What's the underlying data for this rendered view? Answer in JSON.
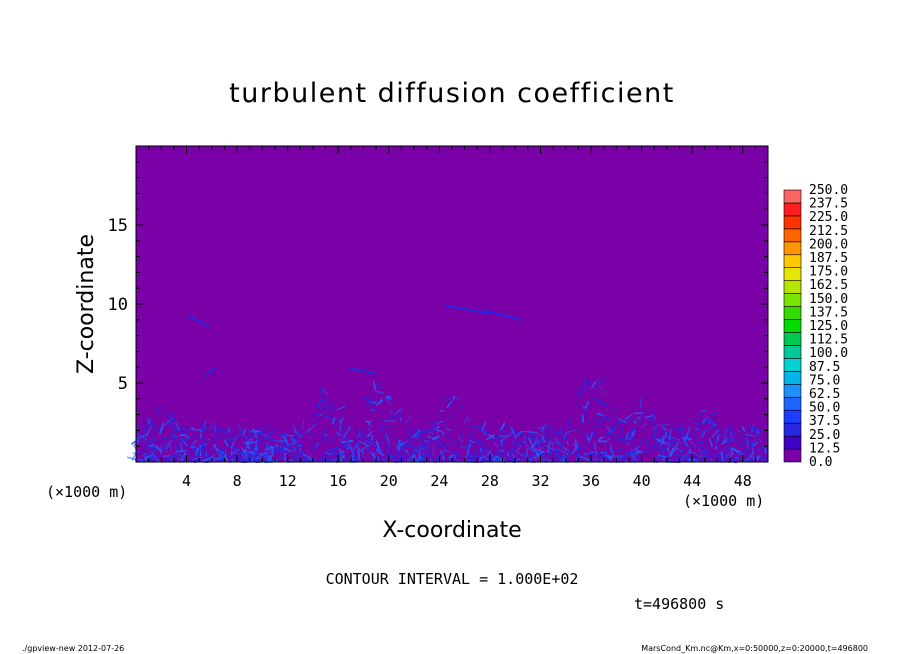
{
  "chart_data": {
    "type": "heatmap",
    "title": "turbulent diffusion coefficient",
    "xlabel": "X-coordinate",
    "ylabel": "Z-coordinate",
    "x_unit": "(×1000 m)",
    "z_unit": "(×1000 m)",
    "xlim": [
      0,
      50
    ],
    "ylim": [
      0,
      20
    ],
    "x_ticks": [
      4,
      8,
      12,
      16,
      20,
      24,
      28,
      32,
      36,
      40,
      44,
      48
    ],
    "y_ticks": [
      5,
      10,
      15
    ],
    "background_value": 0.0,
    "colorbar": {
      "levels": [
        "0.0",
        "12.5",
        "25.0",
        "37.5",
        "50.0",
        "62.5",
        "75.0",
        "87.5",
        "100.0",
        "112.5",
        "125.0",
        "137.5",
        "150.0",
        "162.5",
        "175.0",
        "187.5",
        "200.0",
        "212.5",
        "225.0",
        "237.5",
        "250.0"
      ],
      "colors": [
        "#7a00a8",
        "#4000c8",
        "#2828e0",
        "#1e3cff",
        "#1e64ff",
        "#1e90ff",
        "#00b4e6",
        "#00d2d2",
        "#00c896",
        "#00c850",
        "#00dc00",
        "#32dc00",
        "#78e600",
        "#b4e600",
        "#e6e600",
        "#ffc800",
        "#ff9600",
        "#ff6400",
        "#ff3200",
        "#ff1e1e",
        "#ff6464"
      ]
    },
    "contour_interval": "CONTOUR INTERVAL = 1.000E+02",
    "time": "t=496800 s"
  },
  "footer": {
    "left": "./gpview-new  2012-07-26",
    "right": "MarsCond_Km.nc@Km,x=0:50000,z=0:20000,t=496800"
  },
  "colors": {
    "field_background": "#7a00a8",
    "turbulence_main": "#2828e0",
    "turbulence_light": "#1e64ff"
  }
}
